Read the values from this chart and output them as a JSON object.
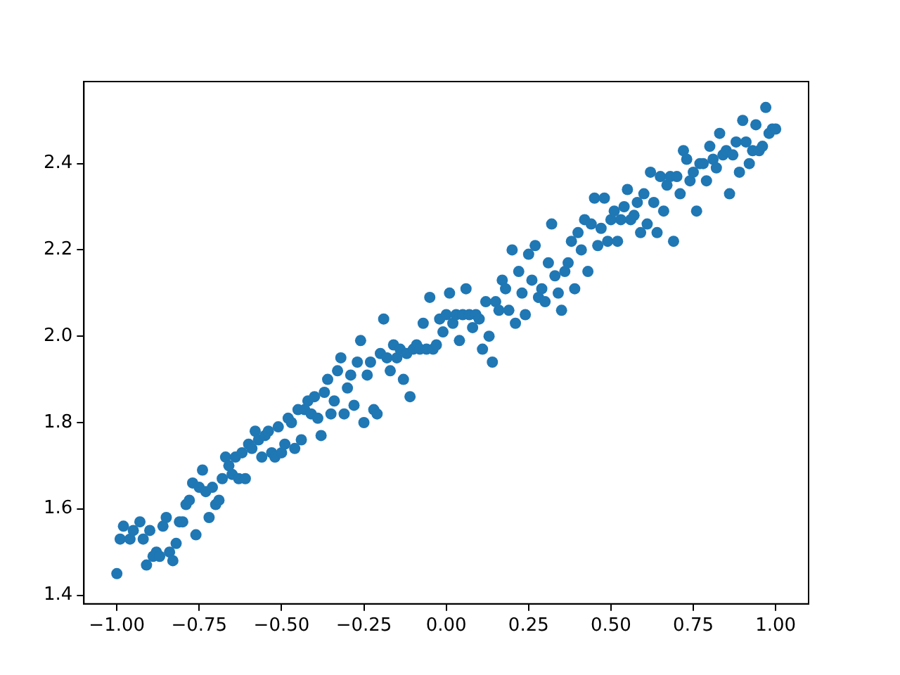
{
  "chart_data": {
    "type": "scatter",
    "grid": false,
    "legend": false,
    "marker": "circle",
    "xlim": [
      -1.1,
      1.1
    ],
    "ylim": [
      1.38,
      2.59
    ],
    "xticks": [
      {
        "value": -1,
        "label": "−1.00"
      },
      {
        "value": -0.75,
        "label": "−0.75"
      },
      {
        "value": -0.5,
        "label": "−0.50"
      },
      {
        "value": -0.25,
        "label": "−0.25"
      },
      {
        "value": 0,
        "label": "0.00"
      },
      {
        "value": 0.25,
        "label": "0.25"
      },
      {
        "value": 0.5,
        "label": "0.50"
      },
      {
        "value": 0.75,
        "label": "0.75"
      },
      {
        "value": 1,
        "label": "1.00"
      }
    ],
    "yticks": [
      {
        "value": 1.4,
        "label": "1.4"
      },
      {
        "value": 1.6,
        "label": "1.6"
      },
      {
        "value": 1.8,
        "label": "1.8"
      },
      {
        "value": 2.0,
        "label": "2.0"
      },
      {
        "value": 2.2,
        "label": "2.2"
      },
      {
        "value": 2.4,
        "label": "2.4"
      }
    ],
    "series": [
      {
        "color": "#1f77b4",
        "x": [
          -1.0,
          -0.99,
          -0.98,
          -0.96,
          -0.95,
          -0.93,
          -0.92,
          -0.91,
          -0.9,
          -0.89,
          -0.88,
          -0.87,
          -0.86,
          -0.85,
          -0.84,
          -0.83,
          -0.82,
          -0.81,
          -0.8,
          -0.79,
          -0.78,
          -0.77,
          -0.76,
          -0.75,
          -0.74,
          -0.73,
          -0.72,
          -0.71,
          -0.7,
          -0.69,
          -0.68,
          -0.67,
          -0.66,
          -0.65,
          -0.64,
          -0.63,
          -0.62,
          -0.61,
          -0.6,
          -0.59,
          -0.58,
          -0.57,
          -0.56,
          -0.55,
          -0.54,
          -0.53,
          -0.52,
          -0.51,
          -0.5,
          -0.49,
          -0.48,
          -0.47,
          -0.46,
          -0.45,
          -0.44,
          -0.43,
          -0.42,
          -0.41,
          -0.4,
          -0.39,
          -0.38,
          -0.37,
          -0.36,
          -0.35,
          -0.34,
          -0.33,
          -0.32,
          -0.31,
          -0.3,
          -0.29,
          -0.28,
          -0.27,
          -0.26,
          -0.25,
          -0.24,
          -0.23,
          -0.22,
          -0.21,
          -0.2,
          -0.19,
          -0.18,
          -0.17,
          -0.16,
          -0.15,
          -0.14,
          -0.13,
          -0.12,
          -0.11,
          -0.1,
          -0.09,
          -0.08,
          -0.07,
          -0.06,
          -0.05,
          -0.04,
          -0.03,
          -0.02,
          -0.01,
          0.0,
          0.01,
          0.02,
          0.03,
          0.04,
          0.05,
          0.06,
          0.07,
          0.08,
          0.09,
          0.1,
          0.11,
          0.12,
          0.13,
          0.14,
          0.15,
          0.16,
          0.17,
          0.18,
          0.19,
          0.2,
          0.21,
          0.22,
          0.23,
          0.24,
          0.25,
          0.26,
          0.27,
          0.28,
          0.29,
          0.3,
          0.31,
          0.32,
          0.33,
          0.34,
          0.35,
          0.36,
          0.37,
          0.38,
          0.39,
          0.4,
          0.41,
          0.42,
          0.43,
          0.44,
          0.45,
          0.46,
          0.47,
          0.48,
          0.49,
          0.5,
          0.51,
          0.52,
          0.53,
          0.54,
          0.55,
          0.56,
          0.57,
          0.58,
          0.59,
          0.6,
          0.61,
          0.62,
          0.63,
          0.64,
          0.65,
          0.66,
          0.67,
          0.68,
          0.69,
          0.7,
          0.71,
          0.72,
          0.73,
          0.74,
          0.75,
          0.76,
          0.77,
          0.78,
          0.79,
          0.8,
          0.81,
          0.82,
          0.83,
          0.84,
          0.85,
          0.86,
          0.87,
          0.88,
          0.89,
          0.9,
          0.91,
          0.92,
          0.93,
          0.94,
          0.95,
          0.96,
          0.97,
          0.98,
          0.99,
          1.0
        ],
        "values": [
          1.45,
          1.53,
          1.56,
          1.53,
          1.55,
          1.57,
          1.53,
          1.47,
          1.55,
          1.49,
          1.5,
          1.49,
          1.56,
          1.58,
          1.5,
          1.48,
          1.52,
          1.57,
          1.57,
          1.61,
          1.62,
          1.66,
          1.54,
          1.65,
          1.69,
          1.64,
          1.58,
          1.65,
          1.61,
          1.62,
          1.67,
          1.72,
          1.7,
          1.68,
          1.72,
          1.67,
          1.73,
          1.67,
          1.75,
          1.74,
          1.78,
          1.76,
          1.72,
          1.77,
          1.78,
          1.73,
          1.72,
          1.79,
          1.73,
          1.75,
          1.81,
          1.8,
          1.74,
          1.83,
          1.76,
          1.83,
          1.85,
          1.82,
          1.86,
          1.81,
          1.77,
          1.87,
          1.9,
          1.82,
          1.85,
          1.92,
          1.95,
          1.82,
          1.88,
          1.91,
          1.84,
          1.94,
          1.99,
          1.8,
          1.91,
          1.94,
          1.83,
          1.82,
          1.96,
          2.04,
          1.95,
          1.92,
          1.98,
          1.95,
          1.97,
          1.9,
          1.96,
          1.86,
          1.97,
          1.98,
          1.97,
          2.03,
          1.97,
          2.09,
          1.97,
          1.98,
          2.04,
          2.01,
          2.05,
          2.1,
          2.03,
          2.05,
          1.99,
          2.05,
          2.11,
          2.05,
          2.02,
          2.05,
          2.04,
          1.97,
          2.08,
          2.0,
          1.94,
          2.08,
          2.06,
          2.13,
          2.11,
          2.06,
          2.2,
          2.03,
          2.15,
          2.1,
          2.05,
          2.19,
          2.13,
          2.21,
          2.09,
          2.11,
          2.08,
          2.17,
          2.26,
          2.14,
          2.1,
          2.06,
          2.15,
          2.17,
          2.22,
          2.11,
          2.24,
          2.2,
          2.27,
          2.15,
          2.26,
          2.32,
          2.21,
          2.25,
          2.32,
          2.22,
          2.27,
          2.29,
          2.22,
          2.27,
          2.3,
          2.34,
          2.27,
          2.28,
          2.31,
          2.24,
          2.33,
          2.26,
          2.38,
          2.31,
          2.24,
          2.37,
          2.29,
          2.35,
          2.37,
          2.22,
          2.37,
          2.33,
          2.43,
          2.41,
          2.36,
          2.38,
          2.29,
          2.4,
          2.4,
          2.36,
          2.44,
          2.41,
          2.39,
          2.47,
          2.42,
          2.43,
          2.33,
          2.42,
          2.45,
          2.38,
          2.5,
          2.45,
          2.4,
          2.43,
          2.49,
          2.43,
          2.44,
          2.53,
          2.47,
          2.48,
          2.48
        ]
      }
    ]
  }
}
